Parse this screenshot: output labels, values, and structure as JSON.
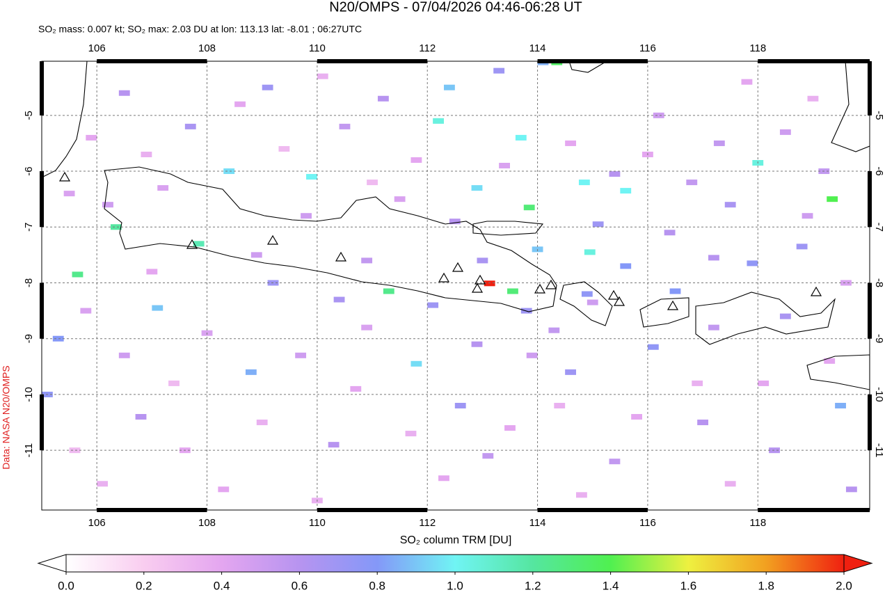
{
  "chart_data": {
    "type": "map",
    "title": "N20/OMPS - 07/04/2026 04:46-06:28 UT",
    "subtitle": "SO₂ mass: 0.007 kt; SO₂ max: 2.03 DU at lon: 113.13 lat: -8.01 ; 06:27UTC",
    "credit": "Data: NASA N20/OMPS",
    "colorbar_label": "SO₂ column TRM [DU]",
    "xlim": [
      105,
      120.03
    ],
    "ylim": [
      -12.07,
      -4.03
    ],
    "xticks": [
      106,
      108,
      110,
      112,
      114,
      116,
      118
    ],
    "yticks": [
      -5,
      -6,
      -7,
      -8,
      -9,
      -10,
      -11
    ],
    "grid": true,
    "clim": [
      0,
      2
    ],
    "cticks": [
      {
        "value": 0,
        "label": "0.0"
      },
      {
        "value": 0.2,
        "label": "0.2"
      },
      {
        "value": 0.4,
        "label": "0.4"
      },
      {
        "value": 0.6,
        "label": "0.6"
      },
      {
        "value": 0.8,
        "label": "0.8"
      },
      {
        "value": 1,
        "label": "1.0"
      },
      {
        "value": 1.2,
        "label": "1.2"
      },
      {
        "value": 1.4,
        "label": "1.4"
      },
      {
        "value": 1.6,
        "label": "1.6"
      },
      {
        "value": 1.8,
        "label": "1.8"
      },
      {
        "value": 2,
        "label": "2.0"
      }
    ],
    "colormap": [
      "#ffffff",
      "#f9cdf0",
      "#e4a6f0",
      "#b794f0",
      "#8498f8",
      "#70f4f4",
      "#55e6a0",
      "#50f050",
      "#eef040",
      "#f2a020",
      "#f02010"
    ],
    "pixels": [
      [
        113.13,
        -8.01,
        2.03
      ],
      [
        114.35,
        -4.05,
        1.35
      ],
      [
        119.35,
        -6.5,
        1.4
      ],
      [
        113.85,
        -6.65,
        1.3
      ],
      [
        118.0,
        -5.85,
        1.05
      ],
      [
        114.85,
        -6.2,
        1.0
      ],
      [
        115.6,
        -6.35,
        1.0
      ],
      [
        114.95,
        -7.45,
        1.05
      ],
      [
        113.55,
        -8.15,
        1.3
      ],
      [
        111.3,
        -8.15,
        1.25
      ],
      [
        106.35,
        -7.0,
        1.2
      ],
      [
        105.65,
        -7.85,
        1.25
      ],
      [
        107.85,
        -7.3,
        1.15
      ],
      [
        109.9,
        -6.1,
        1.0
      ],
      [
        112.2,
        -5.1,
        1.05
      ],
      [
        113.7,
        -5.4,
        1.0
      ],
      [
        112.9,
        -6.3,
        0.95
      ],
      [
        114.0,
        -7.4,
        0.9
      ],
      [
        115.6,
        -7.7,
        0.8
      ],
      [
        116.5,
        -8.15,
        0.8
      ],
      [
        117.9,
        -7.65,
        0.75
      ],
      [
        118.8,
        -7.35,
        0.7
      ],
      [
        119.5,
        -10.2,
        0.85
      ],
      [
        116.1,
        -9.15,
        0.75
      ],
      [
        114.6,
        -9.6,
        0.7
      ],
      [
        112.6,
        -10.2,
        0.7
      ],
      [
        111.8,
        -9.45,
        0.95
      ],
      [
        112.1,
        -8.4,
        0.7
      ],
      [
        110.4,
        -8.3,
        0.65
      ],
      [
        109.2,
        -8.0,
        0.7
      ],
      [
        107.1,
        -8.45,
        0.9
      ],
      [
        105.3,
        -9.0,
        0.8
      ],
      [
        105.1,
        -10.0,
        0.75
      ],
      [
        106.8,
        -10.4,
        0.6
      ],
      [
        108.8,
        -9.6,
        0.85
      ],
      [
        110.3,
        -10.9,
        0.6
      ],
      [
        113.1,
        -11.1,
        0.55
      ],
      [
        115.4,
        -11.2,
        0.55
      ],
      [
        117.0,
        -10.5,
        0.6
      ],
      [
        118.3,
        -11.0,
        0.6
      ],
      [
        119.7,
        -11.7,
        0.6
      ],
      [
        112.4,
        -4.5,
        0.9
      ],
      [
        113.3,
        -4.2,
        0.7
      ],
      [
        114.1,
        -4.05,
        0.85
      ],
      [
        111.2,
        -4.7,
        0.6
      ],
      [
        109.1,
        -4.5,
        0.7
      ],
      [
        106.5,
        -4.6,
        0.6
      ],
      [
        107.7,
        -5.2,
        0.65
      ],
      [
        108.4,
        -6.0,
        0.95
      ],
      [
        110.5,
        -5.2,
        0.55
      ],
      [
        116.2,
        -5.0,
        0.5
      ],
      [
        117.3,
        -5.5,
        0.55
      ],
      [
        118.5,
        -5.3,
        0.5
      ],
      [
        119.2,
        -6.0,
        0.55
      ],
      [
        115.4,
        -6.05,
        0.6
      ],
      [
        116.8,
        -6.2,
        0.55
      ],
      [
        117.5,
        -6.6,
        0.65
      ],
      [
        118.9,
        -6.8,
        0.5
      ],
      [
        116.4,
        -7.1,
        0.6
      ],
      [
        115.1,
        -6.95,
        0.7
      ],
      [
        117.2,
        -7.55,
        0.6
      ],
      [
        118.5,
        -8.6,
        0.65
      ],
      [
        117.2,
        -8.8,
        0.55
      ],
      [
        115.0,
        -8.35,
        0.5
      ],
      [
        114.3,
        -8.85,
        0.55
      ],
      [
        113.9,
        -9.3,
        0.5
      ],
      [
        112.9,
        -9.1,
        0.6
      ],
      [
        110.9,
        -8.8,
        0.45
      ],
      [
        109.7,
        -9.3,
        0.5
      ],
      [
        108.0,
        -8.9,
        0.45
      ],
      [
        106.5,
        -9.3,
        0.5
      ],
      [
        105.8,
        -8.5,
        0.45
      ],
      [
        106.2,
        -6.6,
        0.5
      ],
      [
        107.2,
        -6.3,
        0.45
      ],
      [
        109.8,
        -6.8,
        0.5
      ],
      [
        111.5,
        -6.5,
        0.45
      ],
      [
        112.5,
        -6.9,
        0.6
      ],
      [
        110.9,
        -7.6,
        0.55
      ],
      [
        108.9,
        -7.5,
        0.5
      ],
      [
        107.0,
        -7.8,
        0.4
      ],
      [
        105.5,
        -6.4,
        0.45
      ],
      [
        105.9,
        -5.4,
        0.4
      ],
      [
        106.9,
        -5.7,
        0.35
      ],
      [
        108.6,
        -4.8,
        0.4
      ],
      [
        110.1,
        -4.3,
        0.35
      ],
      [
        111.8,
        -5.8,
        0.4
      ],
      [
        113.4,
        -5.9,
        0.45
      ],
      [
        114.6,
        -5.5,
        0.4
      ],
      [
        116.0,
        -5.7,
        0.4
      ],
      [
        117.8,
        -4.4,
        0.4
      ],
      [
        119.0,
        -4.7,
        0.35
      ],
      [
        119.6,
        -8.0,
        0.45
      ],
      [
        118.1,
        -9.8,
        0.4
      ],
      [
        116.9,
        -9.8,
        0.35
      ],
      [
        115.8,
        -10.4,
        0.4
      ],
      [
        114.4,
        -10.2,
        0.35
      ],
      [
        113.5,
        -10.6,
        0.4
      ],
      [
        111.7,
        -10.7,
        0.35
      ],
      [
        110.7,
        -9.9,
        0.4
      ],
      [
        109.0,
        -10.5,
        0.35
      ],
      [
        107.6,
        -11.0,
        0.4
      ],
      [
        106.1,
        -11.6,
        0.35
      ],
      [
        108.3,
        -11.7,
        0.4
      ],
      [
        110.0,
        -11.9,
        0.35
      ],
      [
        112.3,
        -11.5,
        0.4
      ],
      [
        114.8,
        -11.8,
        0.35
      ],
      [
        117.5,
        -11.6,
        0.35
      ],
      [
        119.3,
        -9.4,
        0.4
      ],
      [
        105.6,
        -11.0,
        0.3
      ],
      [
        107.4,
        -9.8,
        0.3
      ],
      [
        111.0,
        -6.2,
        0.3
      ],
      [
        109.4,
        -5.6,
        0.3
      ],
      [
        113.0,
        -7.6,
        0.65
      ],
      [
        114.9,
        -8.2,
        0.75
      ],
      [
        113.8,
        -8.5,
        0.7
      ]
    ]
  }
}
